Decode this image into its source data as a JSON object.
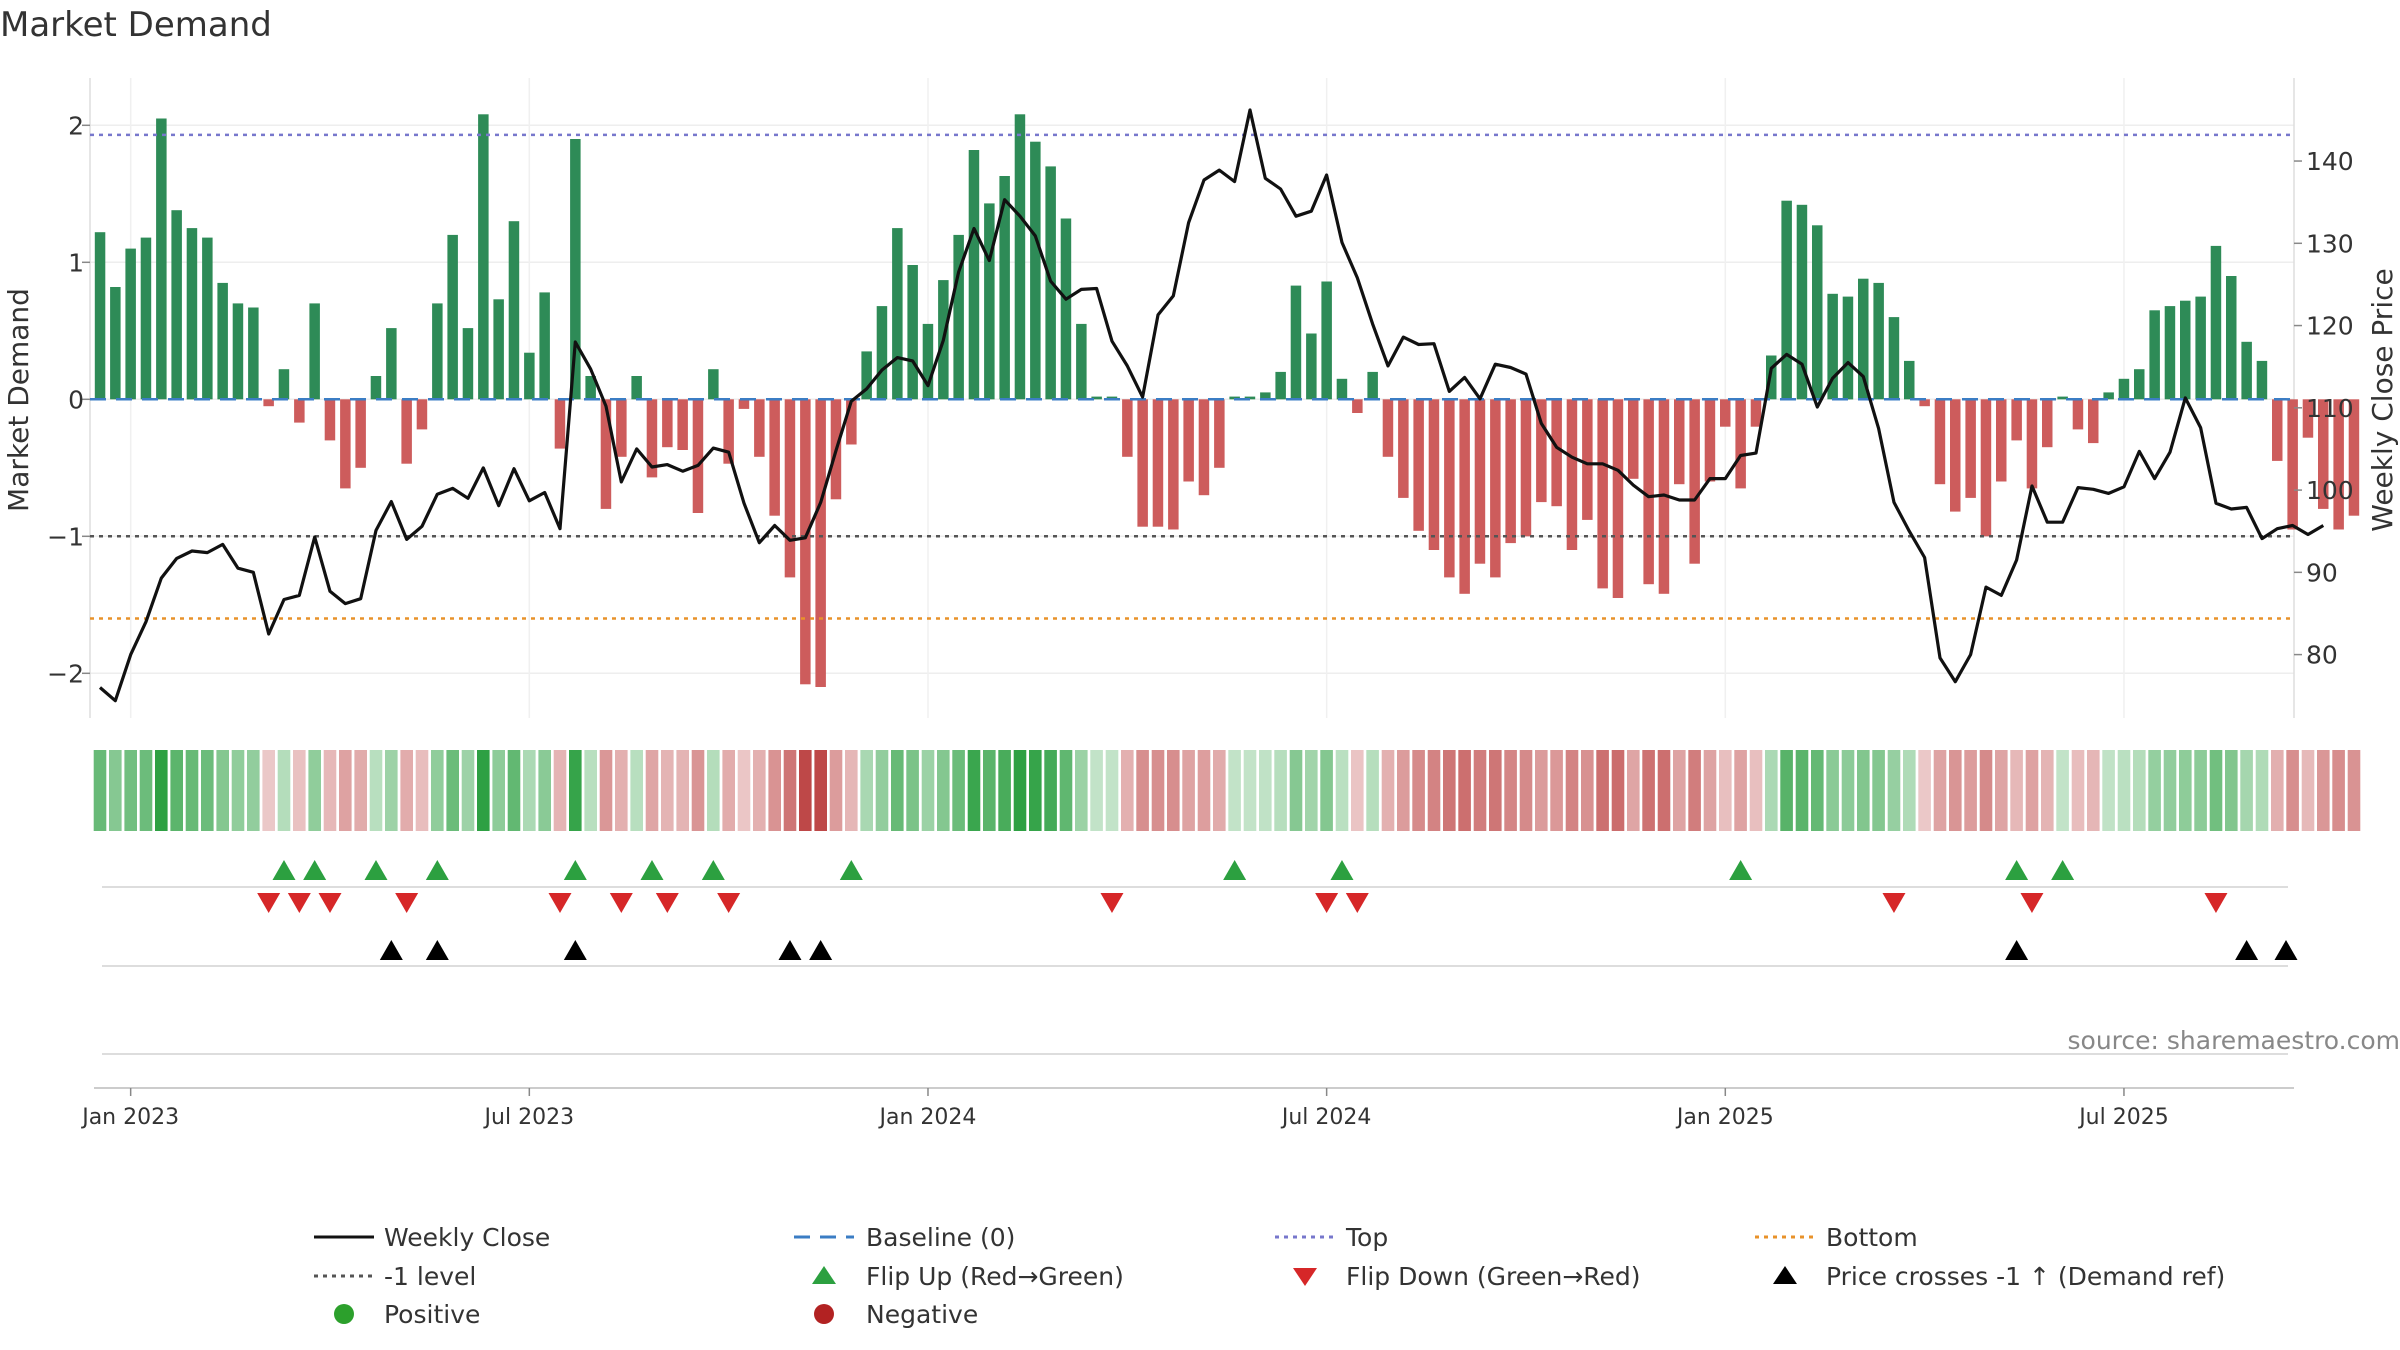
{
  "chart_data": {
    "type": "bar",
    "title": "Market Demand",
    "ylabel": "Market Demand",
    "y2label": "Weekly Close Price",
    "ylim": [
      -2.35,
      2.35
    ],
    "y2lim": [
      73,
      150
    ],
    "yticks": [
      2,
      1,
      0,
      -1,
      -2
    ],
    "y2ticks": [
      80,
      90,
      100,
      110,
      120,
      130,
      140
    ],
    "y_tick_labels": [
      "2",
      "1",
      "0",
      "−1",
      "−2"
    ],
    "y2_tick_labels": [
      "80",
      "90",
      "100",
      "110",
      "120",
      "130",
      "140"
    ],
    "x_tick_labels": [
      "Jan 2023",
      "Jul 2023",
      "Jan 2024",
      "Jul 2024",
      "Jan 2025",
      "Jul 2025"
    ],
    "x_tick_weeks": [
      2,
      28,
      54,
      80,
      106,
      132
    ],
    "reference_lines": {
      "top": 1.93,
      "bottom": -1.6,
      "minus_one": -1.0,
      "baseline": 0
    },
    "demand": [
      1.22,
      0.82,
      1.1,
      1.18,
      2.05,
      1.38,
      1.25,
      1.18,
      0.85,
      0.7,
      0.67,
      -0.05,
      0.22,
      -0.17,
      0.7,
      -0.3,
      -0.65,
      -0.5,
      0.17,
      0.52,
      -0.47,
      -0.22,
      0.7,
      1.2,
      0.52,
      2.08,
      0.73,
      1.3,
      0.34,
      0.78,
      -0.36,
      1.9,
      0.17,
      -0.8,
      -0.42,
      0.17,
      -0.57,
      -0.35,
      -0.37,
      -0.83,
      0.22,
      -0.47,
      -0.07,
      -0.42,
      -0.85,
      -1.3,
      -2.08,
      -2.1,
      -0.73,
      -0.33,
      0.35,
      0.68,
      1.25,
      0.98,
      0.55,
      0.87,
      1.2,
      1.82,
      1.43,
      1.63,
      2.08,
      1.88,
      1.7,
      1.32,
      0.55,
      0.02,
      0.02,
      -0.42,
      -0.93,
      -0.93,
      -0.95,
      -0.6,
      -0.7,
      -0.5,
      0.02,
      0.02,
      0.05,
      0.2,
      0.83,
      0.48,
      0.86,
      0.15,
      -0.1,
      0.2,
      -0.42,
      -0.72,
      -0.96,
      -1.1,
      -1.3,
      -1.42,
      -1.2,
      -1.3,
      -1.05,
      -1.0,
      -0.75,
      -0.78,
      -1.1,
      -0.88,
      -1.38,
      -1.45,
      -0.58,
      -1.35,
      -1.42,
      -0.62,
      -1.2,
      -0.6,
      -0.2,
      -0.65,
      -0.2,
      0.32,
      1.45,
      1.42,
      1.27,
      0.77,
      0.75,
      0.88,
      0.85,
      0.6,
      0.28,
      -0.05,
      -0.62,
      -0.82,
      -0.72,
      -1.0,
      -0.6,
      -0.3,
      -0.65,
      -0.35,
      0.02,
      -0.22,
      -0.32,
      0.05,
      0.15,
      0.22,
      0.65,
      0.68,
      0.72,
      0.75,
      1.12,
      0.9,
      0.42,
      0.28,
      -0.45,
      -0.95,
      -0.28,
      -0.8,
      -0.95,
      -0.85
    ],
    "close": [
      76,
      74.4,
      80,
      84,
      89.3,
      91.7,
      92.6,
      92.4,
      93.4,
      90.5,
      90,
      82.5,
      86.7,
      87.2,
      94.3,
      87.7,
      86.2,
      86.8,
      95.1,
      98.6,
      94,
      95.6,
      99.5,
      100.2,
      99,
      102.7,
      98.1,
      102.6,
      98.7,
      99.7,
      95.3,
      118,
      114.7,
      110.2,
      101,
      105,
      102.8,
      103.1,
      102.3,
      103,
      105.1,
      104.6,
      98.4,
      93.6,
      95.7,
      93.9,
      94.2,
      98.5,
      104.8,
      110.8,
      112.3,
      114.6,
      116.1,
      115.7,
      112.7,
      118.2,
      126.5,
      131.8,
      127.9,
      135.3,
      133.3,
      130.9,
      125.4,
      123.2,
      124.4,
      124.5,
      118.1,
      115.1,
      111.3,
      121.3,
      123.6,
      132.5,
      137.7,
      138.9,
      137.5,
      146.2,
      137.9,
      136.6,
      133.3,
      133.9,
      138.3,
      130.1,
      125.8,
      120.2,
      115.1,
      118.6,
      117.7,
      117.8,
      112,
      113.7,
      111.1,
      115.3,
      114.9,
      114.1,
      108.1,
      105.2,
      104,
      103.2,
      103.2,
      102.4,
      100.6,
      99.2,
      99.4,
      98.8,
      98.8,
      101.4,
      101.4,
      104.2,
      104.5,
      114.8,
      116.5,
      115.3,
      110.1,
      113.6,
      115.5,
      113.8,
      107.5,
      98.5,
      95,
      91.8,
      79.6,
      76.7,
      80,
      88.2,
      87.2,
      91.5,
      100.5,
      96.1,
      96.1,
      100.3,
      100.1,
      99.6,
      100.4,
      104.7,
      101.4,
      104.6,
      111.2,
      107.6,
      98.4,
      97.7,
      97.9,
      94.1,
      95.3,
      95.7,
      94.6,
      95.7
    ],
    "flip_up_weeks": [
      12,
      14,
      18,
      22,
      31,
      36,
      40,
      49,
      74,
      81,
      107,
      125,
      128
    ],
    "flip_down_weeks": [
      11,
      13,
      15,
      20,
      30,
      34,
      37,
      41,
      66,
      80,
      82,
      117,
      126,
      138
    ],
    "price_cross_weeks": [
      19,
      22,
      31,
      45,
      47,
      125,
      140,
      143
    ],
    "legend": {
      "weekly_close": "Weekly Close",
      "baseline": "Baseline (0)",
      "top": "Top",
      "bottom": "Bottom",
      "minus_one": "-1 level",
      "flip_up": "Flip Up (Red→Green)",
      "flip_down": "Flip Down (Green→Red)",
      "price_cross": "Price crosses -1 ↑ (Demand ref)",
      "positive": "Positive",
      "negative": "Negative"
    },
    "source": "source: sharemaestro.com",
    "colors": {
      "positive_bar": "#2e8b57",
      "negative_bar": "#cd5c5c",
      "line": "#111111",
      "top_line": "#7777cc",
      "bottom_line": "#e8922a",
      "minus_one_line": "#555555",
      "baseline": "#3b7dc4",
      "flip_up": "#2ca040",
      "flip_down": "#d62728",
      "price_cross": "#000000",
      "positive_dot": "#2ca02c",
      "negative_dot": "#b22222"
    }
  }
}
